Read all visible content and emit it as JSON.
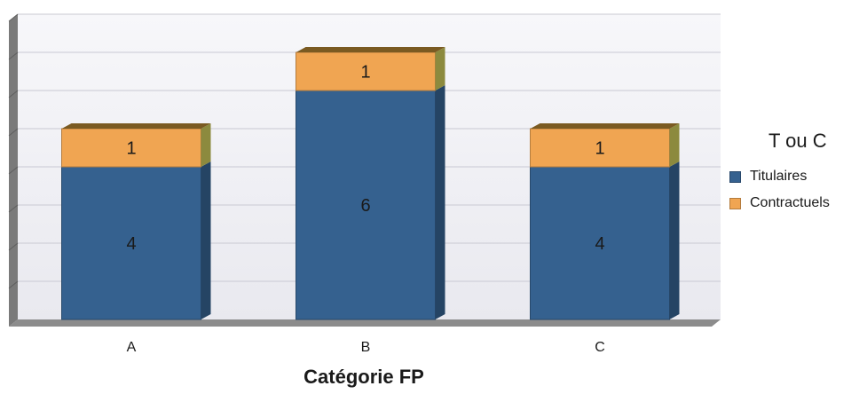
{
  "chart_data": {
    "type": "bar",
    "stacked": true,
    "categories": [
      "A",
      "B",
      "C"
    ],
    "series": [
      {
        "name": "Titulaires",
        "values": [
          4,
          6,
          4
        ],
        "color": "#35618f"
      },
      {
        "name": "Contractuels",
        "values": [
          1,
          1,
          1
        ],
        "color": "#f0a552"
      }
    ],
    "title": "",
    "xlabel": "Catégorie FP",
    "ylabel": "",
    "ylim": [
      0,
      8
    ],
    "grid": true,
    "legend": {
      "title": "T ou C",
      "position": "right"
    }
  }
}
